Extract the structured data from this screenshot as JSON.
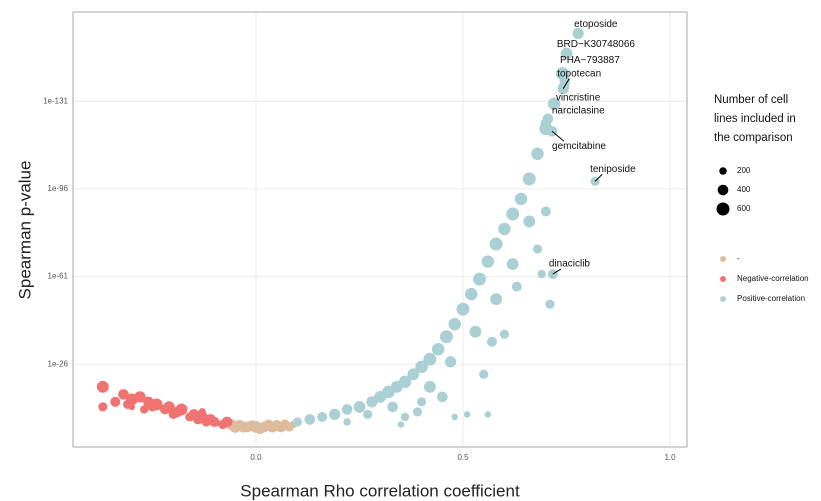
{
  "chart_data": {
    "type": "scatter",
    "xlabel": "Spearman Rho correlation coefficient",
    "ylabel": "Spearman p-value",
    "xlim": [
      -0.442,
      1.041
    ],
    "ylim": [
      10000000,
      2.5e-167
    ],
    "log_y": true,
    "grid": true,
    "xticks": [
      {
        "value": 0,
        "label": "0.0"
      },
      0.5,
      {
        "value": 1,
        "label": "1.0"
      }
    ],
    "yticks": [
      {
        "value": 1e-131,
        "label": "1e-131"
      },
      {
        "value": 1e-96,
        "label": "1e-96"
      },
      {
        "value": 1e-61,
        "label": "1e-61"
      },
      {
        "value": 1e-26,
        "label": "1e-26"
      }
    ],
    "size_legend": {
      "title": [
        "Number of cell",
        "lines included in",
        "the comparison"
      ],
      "sizes": [
        200,
        400,
        600
      ]
    },
    "series": [
      {
        "name": "-",
        "color": "#dcbc9c",
        "x": [
          -0.06,
          -0.05,
          -0.04,
          -0.03,
          -0.02,
          0,
          0.01,
          0.02,
          0.03,
          0.04,
          0.05,
          0.06,
          0.07,
          0.08,
          -0.01,
          0.09
        ],
        "values": [
          0.01,
          0.1,
          0.01,
          0.1,
          0.1,
          0.1,
          1,
          0.1,
          0.01,
          0.1,
          0.01,
          0.1,
          0.01,
          0.1,
          0.01,
          0.01
        ],
        "sizes": [
          400,
          500,
          300,
          450,
          400,
          500,
          300,
          400,
          350,
          450,
          300,
          400,
          350,
          300,
          250,
          200
        ]
      },
      {
        "name": "Negative-correlation",
        "color": "#ef7370",
        "x": [
          -0.37,
          -0.37,
          -0.34,
          -0.32,
          -0.31,
          -0.3,
          -0.28,
          -0.27,
          -0.26,
          -0.25,
          -0.24,
          -0.22,
          -0.21,
          -0.2,
          -0.19,
          -0.18,
          -0.16,
          -0.15,
          -0.14,
          -0.13,
          -0.12,
          -0.11,
          -0.1,
          -0.08,
          -0.07,
          -0.13,
          -0.3
        ],
        "values": [
          1e-17,
          1e-09,
          1e-11,
          1e-14,
          1e-10,
          1e-12,
          1e-13,
          1e-08,
          1e-11,
          1e-09,
          1e-10,
          1e-08,
          1e-09,
          1e-06,
          1e-07,
          1e-08,
          1e-05,
          1e-06,
          0.0001,
          1e-05,
          0.001,
          0.0001,
          0.001,
          0.01,
          0.001,
          1e-07,
          1e-09
        ],
        "sizes": [
          500,
          300,
          350,
          400,
          300,
          500,
          450,
          250,
          400,
          300,
          500,
          350,
          450,
          300,
          400,
          500,
          300,
          400,
          350,
          450,
          300,
          400,
          350,
          300,
          400,
          200,
          150
        ]
      },
      {
        "name": "Positive-correlation",
        "color": "#abd0d4",
        "x": [
          0.1,
          0.13,
          0.16,
          0.19,
          0.22,
          0.25,
          0.28,
          0.3,
          0.32,
          0.34,
          0.36,
          0.38,
          0.4,
          0.42,
          0.44,
          0.46,
          0.48,
          0.5,
          0.52,
          0.54,
          0.56,
          0.58,
          0.6,
          0.62,
          0.64,
          0.66,
          0.68,
          0.7,
          0.72,
          0.74,
          0.75,
          0.778,
          0.39,
          0.36,
          0.4,
          0.48,
          0.51,
          0.56,
          0.45,
          0.55,
          0.57,
          0.6,
          0.63,
          0.68,
          0.7,
          0.69,
          0.71,
          0.717,
          0.819,
          0.7,
          0.705,
          0.715,
          0.742,
          0.746,
          0.744,
          0.27,
          0.33,
          0.42,
          0.47,
          0.53,
          0.58,
          0.62,
          0.66,
          0.35,
          0.22
        ],
        "values": [
          0.001,
          0.0001,
          1e-05,
          1e-06,
          1e-08,
          1e-09,
          1e-11,
          1e-13,
          1e-15,
          1e-17,
          1e-19,
          1e-22,
          1e-25,
          1e-28,
          1e-32,
          1e-37,
          1e-42,
          1e-48,
          1e-54,
          1e-60,
          1e-67,
          1e-74,
          1e-80,
          1e-86,
          1e-92,
          1e-100,
          1e-110,
          1e-120,
          1e-130,
          1e-142,
          1e-150,
          1e-158,
          1e-07,
          1e-05,
          1e-11,
          1e-05,
          1e-06,
          1e-06,
          1e-13,
          1e-22,
          1e-35,
          1e-38,
          1e-57,
          1e-72,
          1e-87,
          1e-62,
          1e-50,
          1e-62,
          1e-99,
          1e-122,
          1e-124,
          1e-119,
          1e-136,
          1e-139,
          1e-137,
          1e-06,
          1e-09,
          1e-17,
          1e-27,
          1e-39,
          1e-52,
          1e-66,
          1e-83,
          0.01,
          0.001
        ],
        "sizes": [
          300,
          400,
          350,
          450,
          400,
          500,
          450,
          500,
          550,
          500,
          550,
          500,
          550,
          600,
          550,
          600,
          550,
          600,
          550,
          600,
          550,
          600,
          550,
          600,
          550,
          600,
          550,
          600,
          550,
          600,
          500,
          450,
          300,
          250,
          300,
          150,
          150,
          150,
          400,
          300,
          350,
          300,
          350,
          300,
          350,
          250,
          300,
          350,
          300,
          400,
          400,
          400,
          450,
          400,
          400,
          300,
          400,
          500,
          450,
          500,
          500,
          500,
          500,
          150,
          200
        ]
      }
    ],
    "annotations": [
      {
        "text": "etoposide",
        "x": 0.778,
        "y": 1e-158
      },
      {
        "text": "BRD−K30748066",
        "x": 0.746,
        "y": 1e-139
      },
      {
        "text": "PHA−793887",
        "x": 0.744,
        "y": 1e-137
      },
      {
        "text": "topotecan",
        "x": 0.742,
        "y": 1e-136
      },
      {
        "text": "vincristine",
        "x": 0.7,
        "y": 1e-122
      },
      {
        "text": "narciclasine",
        "x": 0.705,
        "y": 1e-124
      },
      {
        "text": "gemcitabine",
        "x": 0.715,
        "y": 1e-119
      },
      {
        "text": "teniposide",
        "x": 0.819,
        "y": 1e-99
      },
      {
        "text": "dinaciclib",
        "x": 0.717,
        "y": 1e-62
      }
    ]
  }
}
